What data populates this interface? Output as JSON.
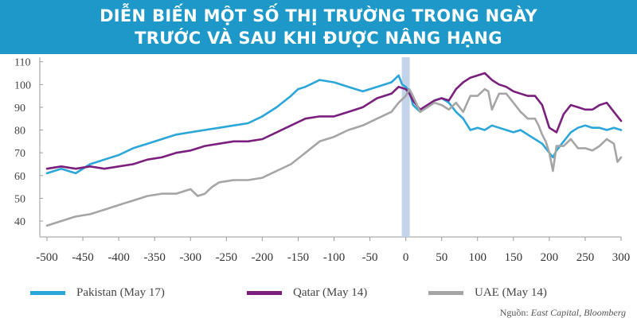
{
  "title_lines": [
    "DIỄN BIẾN MỘT SỐ THỊ TRƯỜNG TRONG NGÀY",
    "TRƯỚC VÀ SAU KHI ĐƯỢC NÂNG HẠNG"
  ],
  "source_label": "Nguồn:",
  "source_text": "East Capital, Bloomberg",
  "colors": {
    "title_bg": "#1e98c9",
    "pakistan": "#2ba6d9",
    "qatar": "#7a1f7d",
    "uae": "#a5a5a5",
    "band": "#c3d3ea"
  },
  "chart_data": {
    "type": "line",
    "xlim": [
      -510,
      300
    ],
    "ylim": [
      33,
      112
    ],
    "yticks": [
      40,
      50,
      60,
      70,
      80,
      90,
      100,
      110
    ],
    "xticks": [
      -500,
      -450,
      -400,
      -350,
      -300,
      -250,
      -200,
      -150,
      -100,
      -50,
      0,
      50,
      100,
      150,
      200,
      250,
      300
    ],
    "highlight_x": 0,
    "series": [
      {
        "name": "Pakistan (May 17)",
        "color": "#2ba6d9",
        "x": [
          -500,
          -480,
          -460,
          -440,
          -420,
          -400,
          -380,
          -360,
          -340,
          -320,
          -300,
          -280,
          -260,
          -240,
          -220,
          -200,
          -180,
          -160,
          -150,
          -140,
          -120,
          -100,
          -80,
          -60,
          -40,
          -20,
          -10,
          -5,
          0,
          5,
          10,
          20,
          30,
          40,
          50,
          60,
          70,
          80,
          90,
          100,
          110,
          120,
          130,
          140,
          150,
          160,
          170,
          180,
          190,
          200,
          205,
          210,
          220,
          230,
          240,
          250,
          260,
          270,
          280,
          290,
          300
        ],
        "values": [
          61,
          63,
          61,
          65,
          67,
          69,
          72,
          74,
          76,
          78,
          79,
          80,
          81,
          82,
          83,
          86,
          90,
          95,
          98,
          99,
          102,
          101,
          99,
          97,
          99,
          101,
          104,
          100,
          99,
          97,
          91,
          88,
          90,
          93,
          94,
          92,
          88,
          85,
          80,
          81,
          80,
          82,
          81,
          80,
          79,
          80,
          78,
          76,
          74,
          70,
          68,
          71,
          75,
          79,
          81,
          82,
          81,
          81,
          80,
          81,
          80
        ]
      },
      {
        "name": "Qatar (May 14)",
        "color": "#7a1f7d",
        "x": [
          -500,
          -480,
          -460,
          -440,
          -420,
          -400,
          -380,
          -360,
          -340,
          -320,
          -300,
          -280,
          -260,
          -240,
          -220,
          -200,
          -180,
          -160,
          -140,
          -120,
          -100,
          -80,
          -60,
          -40,
          -20,
          -10,
          0,
          5,
          10,
          20,
          30,
          40,
          50,
          60,
          70,
          80,
          90,
          100,
          110,
          120,
          130,
          140,
          150,
          160,
          170,
          180,
          190,
          200,
          210,
          220,
          230,
          240,
          250,
          260,
          270,
          280,
          290,
          300
        ],
        "values": [
          63,
          64,
          63,
          64,
          63,
          64,
          65,
          67,
          68,
          70,
          71,
          73,
          74,
          75,
          75,
          76,
          79,
          82,
          85,
          86,
          86,
          88,
          90,
          94,
          96,
          99,
          98,
          96,
          93,
          89,
          91,
          93,
          94,
          93,
          98,
          101,
          103,
          104,
          105,
          102,
          100,
          99,
          97,
          96,
          95,
          95,
          91,
          81,
          79,
          87,
          91,
          90,
          89,
          89,
          91,
          92,
          88,
          84
        ]
      },
      {
        "name": "UAE (May 14)",
        "color": "#a5a5a5",
        "x": [
          -500,
          -480,
          -460,
          -440,
          -420,
          -400,
          -380,
          -360,
          -340,
          -320,
          -300,
          -290,
          -280,
          -270,
          -260,
          -240,
          -220,
          -200,
          -180,
          -160,
          -140,
          -120,
          -100,
          -80,
          -60,
          -40,
          -20,
          -10,
          0,
          5,
          10,
          20,
          30,
          40,
          50,
          60,
          70,
          80,
          90,
          100,
          110,
          115,
          120,
          130,
          140,
          150,
          160,
          170,
          180,
          185,
          190,
          195,
          200,
          205,
          210,
          220,
          230,
          240,
          250,
          260,
          270,
          280,
          290,
          295,
          300
        ],
        "values": [
          38,
          40,
          42,
          43,
          45,
          47,
          49,
          51,
          52,
          52,
          54,
          51,
          52,
          55,
          57,
          58,
          58,
          59,
          62,
          65,
          70,
          75,
          77,
          80,
          82,
          85,
          88,
          92,
          95,
          98,
          95,
          88,
          90,
          92,
          91,
          89,
          92,
          88,
          95,
          95,
          98,
          97,
          89,
          96,
          96,
          92,
          88,
          85,
          85,
          82,
          78,
          75,
          70,
          62,
          73,
          73,
          76,
          72,
          72,
          71,
          73,
          76,
          74,
          66,
          68
        ]
      }
    ]
  }
}
